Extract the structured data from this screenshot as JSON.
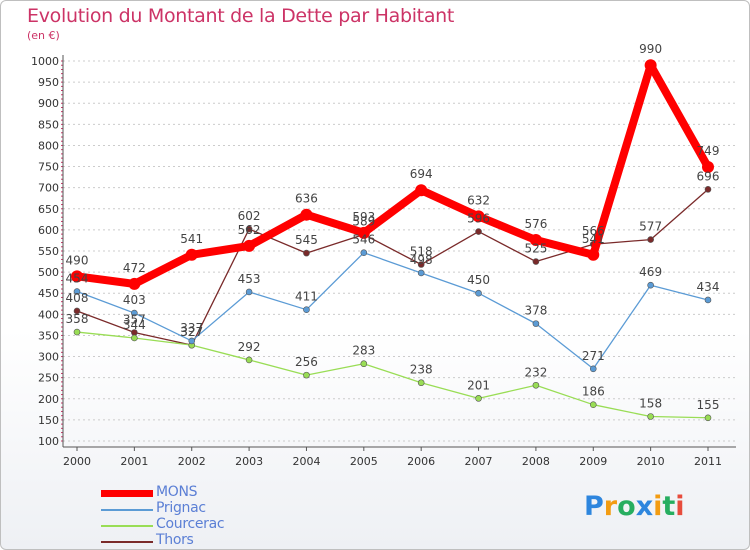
{
  "header": {
    "title": "Evolution du Montant de la Dette par Habitant",
    "subtitle": "(en €)"
  },
  "logo": {
    "text": "Proxiti",
    "letters": [
      {
        "ch": "P",
        "color": "#2e86de"
      },
      {
        "ch": "r",
        "color": "#f39c12"
      },
      {
        "ch": "o",
        "color": "#27ae60"
      },
      {
        "ch": "x",
        "color": "#2e86de"
      },
      {
        "ch": "i",
        "color": "#f39c12"
      },
      {
        "ch": "t",
        "color": "#27ae60"
      },
      {
        "ch": "i",
        "color": "#e74c3c"
      }
    ]
  },
  "colors": {
    "title": "#cc3366",
    "axis": "#555555",
    "grid": "#cccccc",
    "tick_labels": "#333333"
  },
  "chart_data": {
    "type": "line",
    "title": "Evolution du Montant de la Dette par Habitant",
    "subtitle": "(en €)",
    "xlabel": "",
    "ylabel": "",
    "x": [
      "2000",
      "2001",
      "2002",
      "2003",
      "2004",
      "2005",
      "2006",
      "2007",
      "2008",
      "2009",
      "2010",
      "2011"
    ],
    "ylim": [
      100,
      1000
    ],
    "yticks": [
      100,
      150,
      200,
      250,
      300,
      350,
      400,
      450,
      500,
      550,
      600,
      650,
      700,
      750,
      800,
      850,
      900,
      950,
      1000
    ],
    "grid": "horizontal dashed",
    "legend_position": "bottom-left",
    "series": [
      {
        "name": "MONS",
        "color": "#ff0000",
        "values": [
          490,
          472,
          541,
          562,
          636,
          593,
          694,
          632,
          576,
          541,
          990,
          749
        ]
      },
      {
        "name": "Prignac",
        "color": "#5b9bd5",
        "values": [
          454,
          403,
          337,
          453,
          411,
          546,
          498,
          450,
          378,
          271,
          469,
          434
        ]
      },
      {
        "name": "Courcerac",
        "color": "#99dd55",
        "values": [
          358,
          344,
          327,
          292,
          256,
          283,
          238,
          201,
          232,
          186,
          158,
          155
        ]
      },
      {
        "name": "Thors",
        "color": "#7a2a2a",
        "values": [
          408,
          357,
          327,
          602,
          545,
          589,
          518,
          596,
          525,
          566,
          577,
          696
        ]
      }
    ],
    "label_strings": [
      [
        "490",
        "472",
        "541",
        "562",
        "636",
        "593",
        "694",
        "632",
        "576",
        "541",
        "990",
        "749"
      ],
      [
        "454",
        "403",
        "337",
        "453",
        "411",
        "546",
        "498",
        "450",
        "378",
        "271",
        "469",
        "434"
      ],
      [
        "358",
        "344",
        "327",
        "292",
        "256",
        "283",
        "238",
        "201",
        "232",
        "186",
        "158",
        "155"
      ],
      [
        "408",
        "357",
        "327",
        "602",
        "545",
        "589",
        "518",
        "596",
        "525",
        "566",
        "577",
        "696"
      ]
    ]
  }
}
